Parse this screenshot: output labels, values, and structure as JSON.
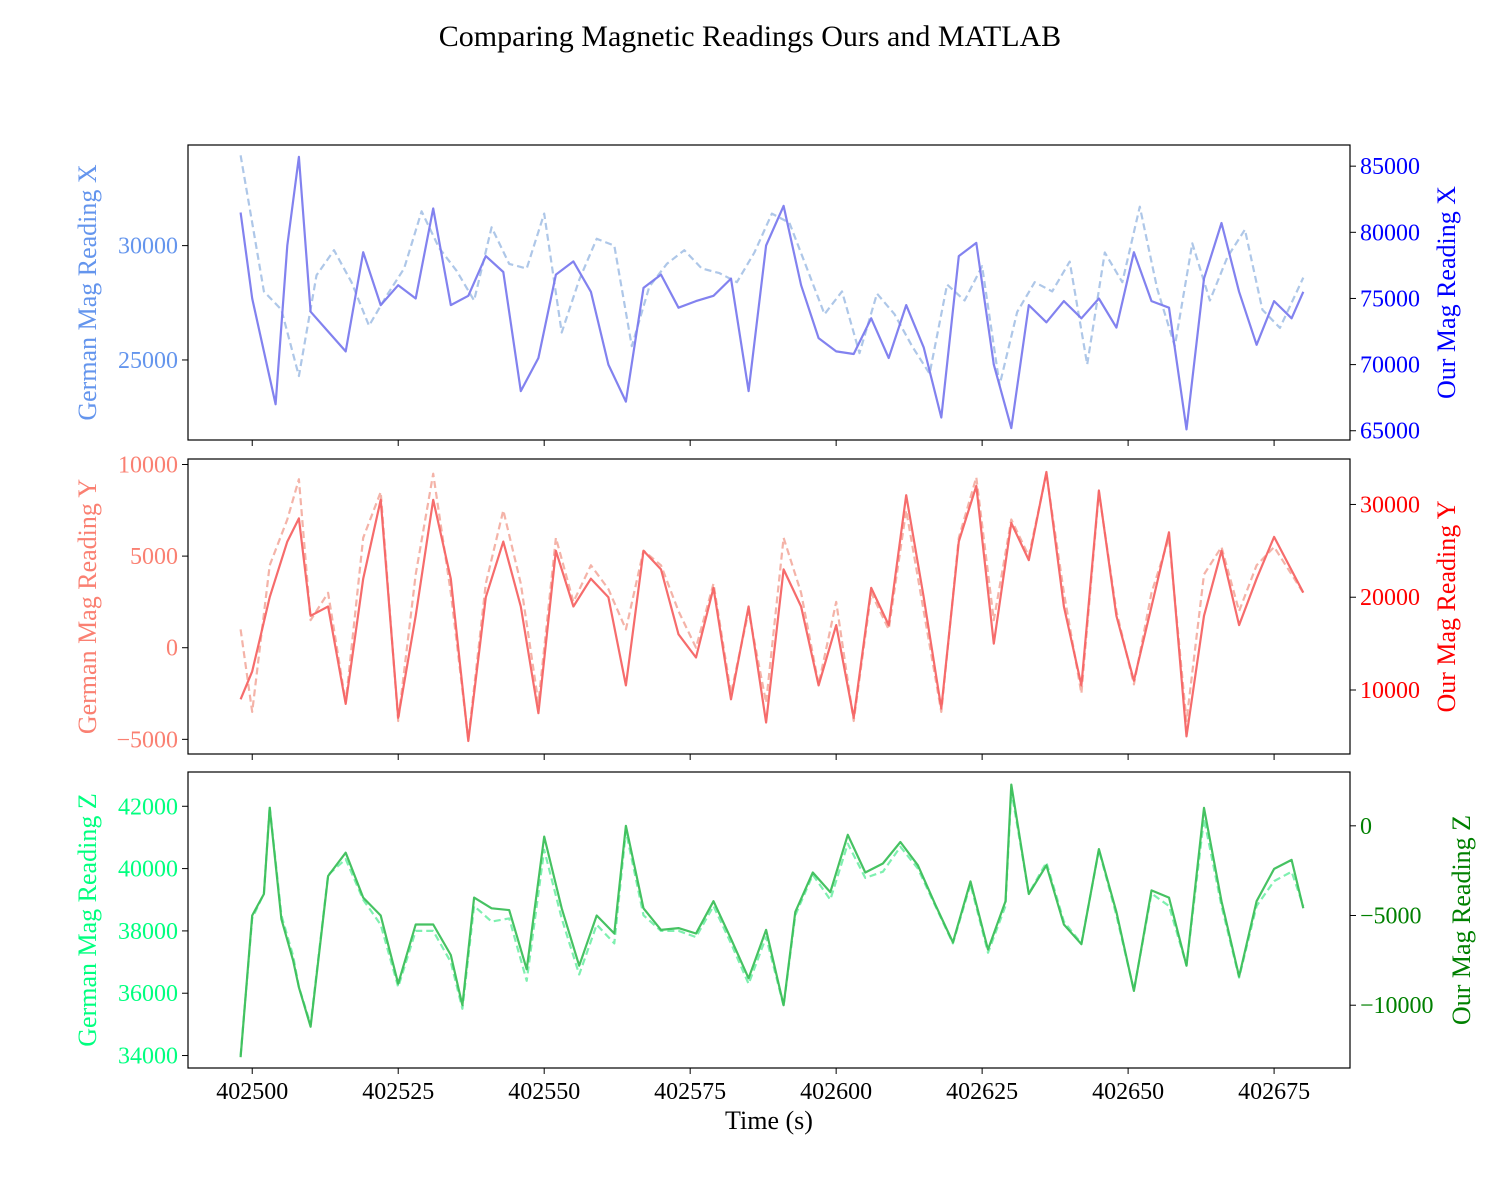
{
  "title": "Comparing Magnetic Readings Ours and MATLAB",
  "xlabel": "Time (s)",
  "colors": {
    "x_left": "#6495ed",
    "x_right": "#0000ff",
    "x_dashed": "#aec7e8",
    "x_solid": "#7b7bee",
    "y_left": "#fa8072",
    "y_right": "#ff0000",
    "y_dashed": "#f4b3a8",
    "y_solid": "#f56464",
    "z_left": "#00ff7f",
    "z_right": "#008000",
    "z_dashed": "#7ff0b0",
    "z_solid": "#3cbf5a"
  },
  "chart_data": [
    {
      "type": "line",
      "panel": "X",
      "left_ylabel": "German Mag Reading X",
      "right_ylabel": "Our Mag Reading X",
      "xlim": [
        402489,
        402688
      ],
      "x_ticks": [
        402500,
        402525,
        402550,
        402575,
        402600,
        402625,
        402650,
        402675
      ],
      "left_ylim": [
        21500,
        34400
      ],
      "left_ticks": [
        25000,
        30000
      ],
      "right_ylim": [
        64300,
        86600
      ],
      "right_ticks": [
        65000,
        70000,
        75000,
        80000,
        85000
      ],
      "series": [
        {
          "axis": "left",
          "style": "dashed",
          "x": [
            402498,
            402500,
            402502,
            402505,
            402508,
            402511,
            402514,
            402517,
            402520,
            402523,
            402526,
            402529,
            402532,
            402535,
            402538,
            402541,
            402544,
            402547,
            402550,
            402553,
            402556,
            402559,
            402562,
            402565,
            402568,
            402571,
            402574,
            402577,
            402580,
            402583,
            402586,
            402589,
            402592,
            402595,
            402598,
            402601,
            402604,
            402607,
            402610,
            402613,
            402616,
            402619,
            402622,
            402625,
            402628,
            402631,
            402634,
            402637,
            402640,
            402643,
            402646,
            402649,
            402652,
            402655,
            402658,
            402661,
            402664,
            402667,
            402670,
            402673,
            402676,
            402680
          ],
          "y": [
            33950,
            31000,
            28000,
            27200,
            24300,
            28700,
            29800,
            28400,
            26500,
            27800,
            29000,
            31500,
            29900,
            28900,
            27600,
            30800,
            29200,
            29000,
            31400,
            26200,
            28500,
            30300,
            30000,
            25600,
            28200,
            29200,
            29800,
            29000,
            28800,
            28400,
            29700,
            31400,
            31000,
            29000,
            27000,
            28000,
            25300,
            27900,
            27000,
            25600,
            24400,
            28300,
            27600,
            29100,
            23900,
            27100,
            28400,
            28000,
            29300,
            24800,
            29700,
            28400,
            31700,
            28100,
            25600,
            30100,
            27600,
            29500,
            30700,
            27200,
            26400,
            28600
          ]
        },
        {
          "axis": "right",
          "style": "solid",
          "x": [
            402498,
            402500,
            402502,
            402504,
            402506,
            402508,
            402510,
            402513,
            402516,
            402519,
            402522,
            402525,
            402528,
            402531,
            402534,
            402537,
            402540,
            402543,
            402546,
            402549,
            402552,
            402555,
            402558,
            402561,
            402564,
            402567,
            402570,
            402573,
            402576,
            402579,
            402582,
            402585,
            402588,
            402591,
            402594,
            402597,
            402600,
            402603,
            402606,
            402609,
            402612,
            402615,
            402618,
            402621,
            402624,
            402627,
            402630,
            402633,
            402636,
            402639,
            402642,
            402645,
            402648,
            402651,
            402654,
            402657,
            402660,
            402663,
            402666,
            402669,
            402672,
            402675,
            402678,
            402680
          ],
          "y": [
            81500,
            75000,
            71000,
            67000,
            79000,
            85700,
            74000,
            72500,
            71000,
            78500,
            74500,
            76000,
            75000,
            81800,
            74500,
            75200,
            78200,
            77000,
            68000,
            70500,
            76800,
            77800,
            75500,
            70000,
            67200,
            75800,
            76800,
            74300,
            74800,
            75200,
            76500,
            68000,
            79000,
            82000,
            76000,
            72000,
            71000,
            70800,
            73500,
            70500,
            74500,
            71300,
            66000,
            78200,
            79200,
            70000,
            65200,
            74500,
            73200,
            74800,
            73500,
            75000,
            72800,
            78500,
            74800,
            74300,
            65100,
            76500,
            80700,
            75500,
            71500,
            74800,
            73500,
            75500
          ]
        }
      ]
    },
    {
      "type": "line",
      "panel": "Y",
      "left_ylabel": "German Mag Reading Y",
      "right_ylabel": "Our Mag Reading Y",
      "xlim": [
        402489,
        402688
      ],
      "x_ticks": [
        402500,
        402525,
        402550,
        402575,
        402600,
        402625,
        402650,
        402675
      ],
      "left_ylim": [
        -5800,
        10300
      ],
      "left_ticks": [
        -5000,
        0,
        5000,
        10000
      ],
      "right_ylim": [
        3100,
        34900
      ],
      "right_ticks": [
        10000,
        20000,
        30000
      ],
      "series": [
        {
          "axis": "left",
          "style": "dashed",
          "x": [
            402498,
            402500,
            402503,
            402506,
            402508,
            402510,
            402513,
            402516,
            402519,
            402522,
            402525,
            402528,
            402531,
            402534,
            402537,
            402540,
            402543,
            402546,
            402549,
            402552,
            402555,
            402558,
            402561,
            402564,
            402567,
            402570,
            402573,
            402576,
            402579,
            402582,
            402585,
            402588,
            402591,
            402594,
            402597,
            402600,
            402603,
            402606,
            402609,
            402612,
            402615,
            402618,
            402621,
            402624,
            402627,
            402630,
            402633,
            402636,
            402639,
            402642,
            402645,
            402648,
            402651,
            402654,
            402657,
            402660,
            402663,
            402666,
            402669,
            402672,
            402675,
            402680
          ],
          "y": [
            1000,
            -3500,
            4500,
            7000,
            9200,
            1500,
            3000,
            -3000,
            6000,
            8500,
            -4000,
            4000,
            9500,
            3000,
            -5000,
            3500,
            7500,
            3500,
            -3000,
            6000,
            2500,
            4500,
            3200,
            1000,
            5300,
            4500,
            2000,
            0,
            3500,
            -2500,
            2000,
            -3000,
            6000,
            3000,
            -2000,
            2500,
            -4000,
            3000,
            1000,
            7500,
            2000,
            -3500,
            6000,
            9300,
            1500,
            7000,
            5000,
            9500,
            3000,
            -2500,
            8500,
            2000,
            -2000,
            3000,
            6000,
            -4000,
            4000,
            5500,
            2000,
            4500,
            5500,
            3000
          ]
        },
        {
          "axis": "right",
          "style": "solid",
          "x": [
            402498,
            402500,
            402503,
            402506,
            402508,
            402510,
            402513,
            402516,
            402519,
            402522,
            402525,
            402528,
            402531,
            402534,
            402537,
            402540,
            402543,
            402546,
            402549,
            402552,
            402555,
            402558,
            402561,
            402564,
            402567,
            402570,
            402573,
            402576,
            402579,
            402582,
            402585,
            402588,
            402591,
            402594,
            402597,
            402600,
            402603,
            402606,
            402609,
            402612,
            402615,
            402618,
            402621,
            402624,
            402627,
            402630,
            402633,
            402636,
            402639,
            402642,
            402645,
            402648,
            402651,
            402654,
            402657,
            402660,
            402663,
            402666,
            402669,
            402672,
            402675,
            402680
          ],
          "y": [
            9000,
            12000,
            20000,
            26000,
            28500,
            18000,
            19000,
            8500,
            22000,
            30500,
            7000,
            18000,
            30500,
            22000,
            4500,
            20000,
            26000,
            19000,
            7500,
            25000,
            19000,
            22000,
            20000,
            10500,
            25000,
            23000,
            16000,
            13500,
            21000,
            9000,
            19000,
            6500,
            23000,
            19000,
            10500,
            17000,
            7000,
            21000,
            17000,
            31000,
            20000,
            8000,
            26000,
            32000,
            15000,
            28000,
            24000,
            33500,
            19000,
            10500,
            31500,
            18000,
            11000,
            19000,
            27000,
            5000,
            18000,
            25000,
            17000,
            22000,
            26500,
            20500
          ]
        }
      ]
    },
    {
      "type": "line",
      "panel": "Z",
      "left_ylabel": "German Mag Reading Z",
      "right_ylabel": "Our Mag Reading Z",
      "xlim": [
        402489,
        402688
      ],
      "x_ticks": [
        402500,
        402525,
        402550,
        402575,
        402600,
        402625,
        402650,
        402675
      ],
      "left_ylim": [
        33600,
        43100
      ],
      "left_ticks": [
        34000,
        36000,
        38000,
        40000,
        42000
      ],
      "right_ylim": [
        -13500,
        3000
      ],
      "right_ticks": [
        -10000,
        -5000,
        0
      ],
      "series": [
        {
          "axis": "left",
          "style": "dashed",
          "x": [
            402498,
            402500,
            402502,
            402503,
            402505,
            402507,
            402508,
            402510,
            402513,
            402516,
            402519,
            402522,
            402525,
            402528,
            402531,
            402534,
            402536,
            402538,
            402541,
            402544,
            402547,
            402550,
            402553,
            402556,
            402559,
            402562,
            402564,
            402567,
            402570,
            402573,
            402576,
            402579,
            402582,
            402585,
            402588,
            402591,
            402593,
            402596,
            402599,
            402602,
            402605,
            402608,
            402611,
            402614,
            402617,
            402620,
            402623,
            402626,
            402629,
            402630,
            402633,
            402636,
            402639,
            402642,
            402645,
            402648,
            402651,
            402654,
            402657,
            402660,
            402663,
            402666,
            402669,
            402672,
            402675,
            402678,
            402680
          ],
          "y": [
            34000,
            38400,
            39200,
            42000,
            38500,
            37200,
            36200,
            35000,
            39800,
            40300,
            39000,
            38200,
            36200,
            38000,
            38000,
            37000,
            35500,
            38800,
            38300,
            38400,
            36400,
            40600,
            38400,
            36600,
            38200,
            37600,
            41200,
            38500,
            38000,
            38000,
            37800,
            38800,
            37600,
            36300,
            37800,
            35600,
            38500,
            39800,
            39000,
            40800,
            39700,
            39900,
            40700,
            40000,
            38800,
            37600,
            39500,
            37300,
            38800,
            42500,
            39200,
            40200,
            38300,
            37600,
            40600,
            38500,
            36100,
            39200,
            38800,
            36900,
            41600,
            38800,
            36500,
            38800,
            39600,
            39900,
            38800
          ]
        },
        {
          "axis": "right",
          "style": "solid",
          "x": [
            402498,
            402500,
            402502,
            402503,
            402505,
            402507,
            402508,
            402510,
            402513,
            402516,
            402519,
            402522,
            402525,
            402528,
            402531,
            402534,
            402536,
            402538,
            402541,
            402544,
            402547,
            402550,
            402553,
            402556,
            402559,
            402562,
            402564,
            402567,
            402570,
            402573,
            402576,
            402579,
            402582,
            402585,
            402588,
            402591,
            402593,
            402596,
            402599,
            402602,
            402605,
            402608,
            402611,
            402614,
            402617,
            402620,
            402623,
            402626,
            402629,
            402630,
            402633,
            402636,
            402639,
            402642,
            402645,
            402648,
            402651,
            402654,
            402657,
            402660,
            402663,
            402666,
            402669,
            402672,
            402675,
            402678,
            402680
          ],
          "y": [
            -12900,
            -5000,
            -3800,
            1000,
            -5200,
            -7500,
            -9000,
            -11200,
            -2800,
            -1500,
            -4000,
            -5000,
            -8800,
            -5500,
            -5500,
            -7200,
            -10000,
            -4000,
            -4600,
            -4700,
            -8000,
            -600,
            -4600,
            -7800,
            -5000,
            -6000,
            0,
            -4600,
            -5800,
            -5700,
            -6000,
            -4200,
            -6300,
            -8500,
            -5800,
            -10000,
            -4800,
            -2600,
            -3700,
            -500,
            -2600,
            -2100,
            -900,
            -2200,
            -4400,
            -6500,
            -3100,
            -6900,
            -4200,
            2300,
            -3800,
            -2200,
            -5500,
            -6600,
            -1300,
            -4800,
            -9200,
            -3600,
            -4000,
            -7800,
            1000,
            -4200,
            -8400,
            -4200,
            -2400,
            -1900,
            -4600
          ]
        }
      ]
    }
  ]
}
